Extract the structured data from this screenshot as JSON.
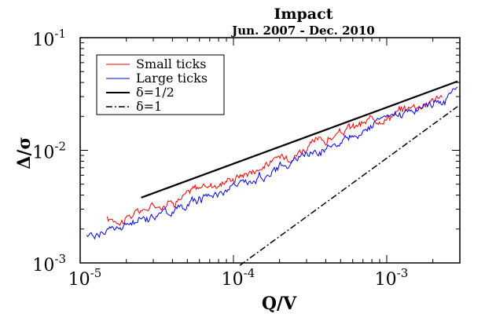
{
  "chart_data": {
    "type": "line",
    "title": "Impact",
    "subtitle": "Jun. 2007 - Dec. 2010",
    "xlabel": "Q/V",
    "ylabel": "Δ/σ",
    "xscale": "log",
    "yscale": "log",
    "xlim": [
      1e-05,
      0.003
    ],
    "ylim": [
      0.001,
      0.1
    ],
    "x_ticks": [
      {
        "value": 1e-05,
        "base": "10",
        "exp": "-5"
      },
      {
        "value": 0.0001,
        "base": "10",
        "exp": "-4"
      },
      {
        "value": 0.001,
        "base": "10",
        "exp": "-3"
      }
    ],
    "y_ticks": [
      {
        "value": 0.001,
        "base": "10",
        "exp": "-3"
      },
      {
        "value": 0.01,
        "base": "10",
        "exp": "-2"
      },
      {
        "value": 0.1,
        "base": "10",
        "exp": "-1"
      }
    ],
    "legend_position": "top-left",
    "series": [
      {
        "name": "Small ticks",
        "color": "#ff0000",
        "style": "noisy",
        "x": [
          1.5e-05,
          2e-05,
          2.5e-05,
          3e-05,
          4e-05,
          5e-05,
          6e-05,
          8e-05,
          0.0001,
          0.00013,
          0.00016,
          0.0002,
          0.00025,
          0.0003,
          0.0004,
          0.0005,
          0.0006,
          0.0008,
          0.001,
          0.0013,
          0.0016,
          0.002,
          0.0023
        ],
        "y": [
          0.0024,
          0.0025,
          0.0029,
          0.0032,
          0.0036,
          0.0041,
          0.0047,
          0.0051,
          0.0058,
          0.0066,
          0.0074,
          0.0085,
          0.0096,
          0.0108,
          0.0123,
          0.0142,
          0.0158,
          0.0181,
          0.0204,
          0.0232,
          0.0255,
          0.0285,
          0.0306
        ]
      },
      {
        "name": "Large ticks",
        "color": "#0000ff",
        "style": "noisy",
        "x": [
          1.1e-05,
          1.5e-05,
          2e-05,
          2.5e-05,
          3e-05,
          4e-05,
          5e-05,
          6e-05,
          8e-05,
          0.0001,
          0.00013,
          0.00016,
          0.0002,
          0.00025,
          0.0003,
          0.0004,
          0.0005,
          0.0006,
          0.0008,
          0.001,
          0.0013,
          0.0016,
          0.002,
          0.0025,
          0.0029
        ],
        "y": [
          0.0017,
          0.0019,
          0.0021,
          0.0024,
          0.0027,
          0.0029,
          0.0034,
          0.0037,
          0.0042,
          0.0048,
          0.0054,
          0.0061,
          0.0071,
          0.0082,
          0.0093,
          0.0108,
          0.0124,
          0.0141,
          0.0164,
          0.0188,
          0.0215,
          0.0238,
          0.0262,
          0.0295,
          0.0355
        ]
      },
      {
        "name": "δ=1/2",
        "color": "#000000",
        "style": "solid",
        "x": [
          2.5e-05,
          0.0029
        ],
        "y": [
          0.0038,
          0.041
        ]
      },
      {
        "name": "δ=1",
        "color": "#000000",
        "style": "dash-dot",
        "x": [
          0.00011,
          0.0029
        ],
        "y": [
          0.00095,
          0.0245
        ]
      }
    ]
  }
}
